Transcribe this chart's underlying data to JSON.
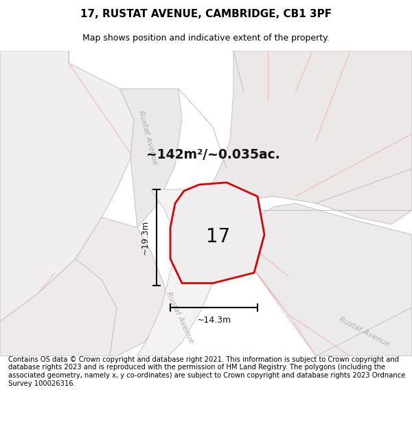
{
  "title": "17, RUSTAT AVENUE, CAMBRIDGE, CB1 3PF",
  "subtitle": "Map shows position and indicative extent of the property.",
  "footer": "Contains OS data © Crown copyright and database right 2021. This information is subject to Crown copyright and database rights 2023 and is reproduced with the permission of HM Land Registry. The polygons (including the associated geometry, namely x, y co-ordinates) are subject to Crown copyright and database rights 2023 Ordnance Survey 100026316.",
  "area_text": "~142m²/~0.035ac.",
  "label_17": "17",
  "dim_width": "~14.3m",
  "dim_height": "~19.3m",
  "road_label_left": "Rustat Avenue",
  "road_label_diag": "Rustat Avenue",
  "road_label_br": "Rustat Avenue",
  "bg_color": "#f7f5f5",
  "plot_stroke": "#dd0000",
  "plot_fill": "#f0eeee",
  "light_pink": "#f0b8b8",
  "med_pink": "#e8a0a0",
  "grey_line": "#c0bcbc",
  "block_fill": "#ece8e8",
  "block_edge": "#c8c4c4",
  "road_text_color": "#b0acac",
  "title_fontsize": 11,
  "subtitle_fontsize": 9,
  "footer_fontsize": 7.2
}
